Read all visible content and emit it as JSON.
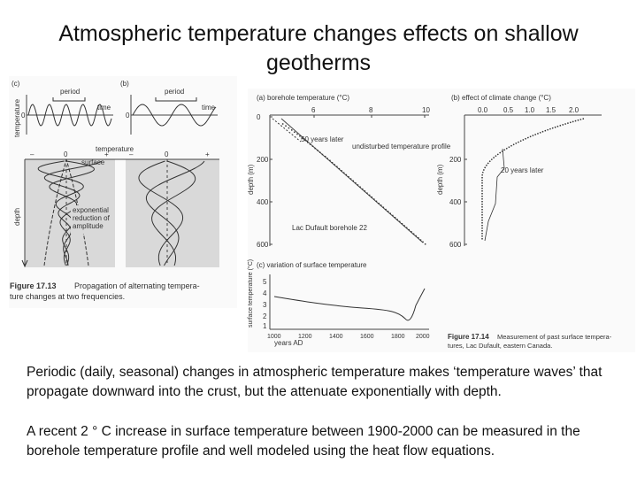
{
  "title": "Atmospheric temperature changes effects on shallow geotherms",
  "figure_left": {
    "panel_c": "(c)",
    "panel_b": "(b)",
    "period": "period",
    "time": "time",
    "temperature": "temperature",
    "zero": "0",
    "minus": "–",
    "plus": "+",
    "surface": "surface",
    "depth": "depth",
    "annotation": [
      "exponential",
      "reduction of",
      "amplitude"
    ],
    "caption_label": "Figure 17.13",
    "caption": [
      "Propagation of alternating tempera-",
      "ture changes at two frequencies."
    ]
  },
  "figure_right": {
    "panel_a": {
      "title": "(a) borehole temperature (°C)",
      "xticks": [
        "6",
        "8",
        "10"
      ],
      "yticks": [
        "0",
        "200",
        "400",
        "600"
      ],
      "ylabel": "depth (m)",
      "annotations": [
        "50 years later",
        "undisturbed temperature profile",
        "Lac Dufault borehole 22"
      ]
    },
    "panel_b": {
      "title": "(b) effect of climate change (°C)",
      "xticks": [
        "0.0",
        "0.5",
        "1.0",
        "1.5",
        "2.0"
      ],
      "yticks": [
        "200",
        "400",
        "600"
      ],
      "ylabel": "depth (m)",
      "annotation": "20 years later"
    },
    "panel_c": {
      "title": "(c) variation of surface temperature",
      "yticks": [
        "5",
        "4",
        "3",
        "2",
        "1"
      ],
      "ylabel": "surface temperature (°C)",
      "xticks": [
        "1000",
        "1200",
        "1400",
        "1600",
        "1800",
        "2000"
      ],
      "xlabel": "years AD"
    },
    "caption_label": "Figure 17.14",
    "caption": [
      "Measurement of past surface tempera-",
      "tures, Lac Dufault, eastern Canada."
    ]
  },
  "paragraphs": [
    "Periodic (daily, seasonal) changes in atmospheric temperature makes ‘temperature waves’ that propagate downward into the crust, but the attenuate exponentially with depth.",
    "A recent 2 ° C increase in surface temperature between 1900-2000  can be measured in the borehole temperature profile and well modeled using the heat flow equations."
  ]
}
